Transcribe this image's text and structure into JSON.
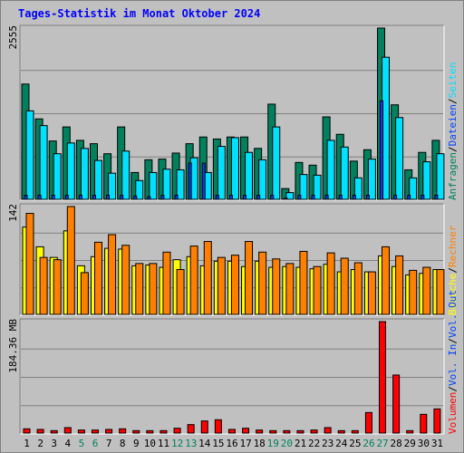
{
  "title": "Tages-Statistik im Monat Oktober 2024",
  "colors": {
    "hits": "#00805c",
    "files": "#0040ff",
    "pages": "#00e0ff",
    "visits": "#ffff00",
    "sites": "#ff8000",
    "vol_in": "#0040ff",
    "vol_out": "#0040ff",
    "volume": "#ff0000",
    "weekend_label": "#00805c",
    "weekday_label": "#000000"
  },
  "chart_data": [
    {
      "type": "bar",
      "name": "top",
      "ymax_label": "2555",
      "ylim": [
        0,
        2555
      ],
      "categories": [
        "1",
        "2",
        "3",
        "4",
        "5",
        "6",
        "7",
        "8",
        "9",
        "10",
        "11",
        "12",
        "13",
        "14",
        "15",
        "16",
        "17",
        "18",
        "19",
        "20",
        "21",
        "22",
        "23",
        "24",
        "25",
        "26",
        "27",
        "28",
        "29",
        "30",
        "31"
      ],
      "weekend": [
        false,
        false,
        false,
        false,
        true,
        true,
        false,
        false,
        false,
        false,
        false,
        true,
        true,
        false,
        false,
        false,
        false,
        false,
        true,
        true,
        false,
        false,
        false,
        false,
        false,
        true,
        true,
        false,
        false,
        false,
        false
      ],
      "right_label": {
        "parts": [
          "Anfragen",
          "Dateien",
          "Seiten"
        ],
        "seps": [
          "/",
          "/"
        ]
      },
      "series": [
        {
          "key": "hits",
          "values": [
            1720,
            1200,
            870,
            1080,
            880,
            830,
            680,
            1080,
            400,
            590,
            600,
            690,
            830,
            930,
            900,
            930,
            930,
            760,
            1420,
            160,
            550,
            510,
            1230,
            970,
            570,
            740,
            2555,
            1410,
            440,
            700,
            880
          ]
        },
        {
          "key": "files",
          "values": [
            60,
            60,
            60,
            60,
            60,
            60,
            60,
            60,
            50,
            40,
            60,
            60,
            540,
            540,
            60,
            60,
            60,
            60,
            60,
            20,
            60,
            60,
            60,
            60,
            60,
            60,
            1470,
            60,
            60,
            60,
            60
          ]
        },
        {
          "key": "pages",
          "values": [
            1320,
            1100,
            680,
            840,
            760,
            580,
            390,
            720,
            280,
            400,
            450,
            440,
            620,
            400,
            790,
            920,
            700,
            590,
            1080,
            100,
            370,
            360,
            880,
            780,
            320,
            600,
            2120,
            1220,
            320,
            560,
            680
          ]
        }
      ]
    },
    {
      "type": "bar",
      "name": "middle",
      "ymax_label": "142",
      "ylim": [
        0,
        142
      ],
      "right_label": {
        "parts": [
          "Besuche",
          "Rechner"
        ],
        "seps": [
          "/"
        ]
      },
      "series": [
        {
          "key": "visits",
          "values": [
            115,
            89,
            75,
            110,
            64,
            76,
            87,
            86,
            64,
            65,
            62,
            72,
            76,
            64,
            70,
            70,
            63,
            70,
            62,
            63,
            62,
            60,
            66,
            56,
            59,
            56,
            77,
            63,
            52,
            54,
            59
          ]
        },
        {
          "key": "sites",
          "values": [
            133,
            75,
            72,
            142,
            55,
            95,
            105,
            91,
            67,
            67,
            82,
            59,
            90,
            96,
            75,
            78,
            96,
            82,
            73,
            67,
            83,
            63,
            81,
            74,
            68,
            56,
            89,
            77,
            58,
            62,
            59
          ]
        }
      ]
    },
    {
      "type": "bar",
      "name": "bottom",
      "ymax_label": "184.36 MB",
      "ylim": [
        0,
        184.36
      ],
      "right_label": {
        "parts": [
          "Volumen",
          "Vol. In",
          "Vol. Out"
        ],
        "seps": [
          "/",
          "/"
        ]
      },
      "series": [
        {
          "key": "volume",
          "values": [
            7,
            6,
            4,
            9,
            5,
            5,
            6,
            7,
            4,
            4,
            4,
            8,
            14,
            20,
            22,
            6,
            8,
            5,
            4,
            4,
            4,
            5,
            9,
            4,
            4,
            34,
            184.36,
            96,
            4,
            31,
            40
          ]
        }
      ]
    }
  ]
}
